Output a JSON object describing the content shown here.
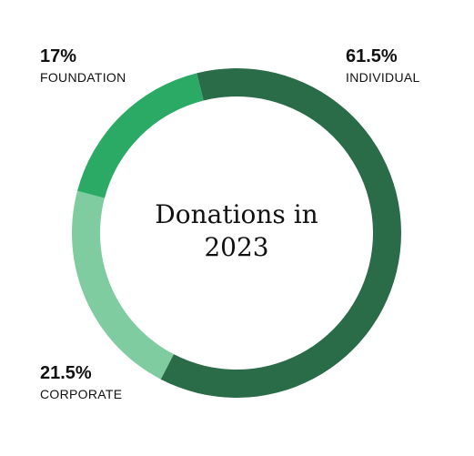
{
  "chart_data": {
    "type": "donut",
    "title": "Donations in 2023",
    "categories": [
      "INDIVIDUAL",
      "CORPORATE",
      "FOUNDATION"
    ],
    "values": [
      61.5,
      21.5,
      17
    ],
    "value_labels": [
      "61.5%",
      "21.5%",
      "17%"
    ],
    "colors": [
      "#2a6b48",
      "#7fcca0",
      "#2baa66"
    ]
  }
}
